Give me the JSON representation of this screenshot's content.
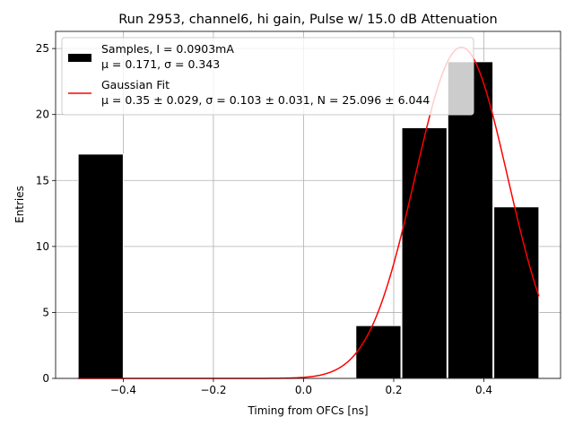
{
  "chart_data": {
    "type": "bar",
    "title": "Run 2953, channel6, hi gain, Pulse w/ 15.0 dB Attenuation",
    "xlabel": "Timing from OFCs [ns]",
    "ylabel": "Entries",
    "xlim": [
      -0.55,
      0.57
    ],
    "ylim": [
      0,
      26.3
    ],
    "xticks": [
      -0.4,
      -0.2,
      0.0,
      0.2,
      0.4
    ],
    "xtick_labels": [
      "−0.4",
      "−0.2",
      "0.0",
      "0.2",
      "0.4"
    ],
    "yticks": [
      0,
      5,
      10,
      15,
      20,
      25
    ],
    "ytick_labels": [
      "0",
      "5",
      "10",
      "15",
      "20",
      "25"
    ],
    "grid": true,
    "legend_position": "top-left",
    "bins": [
      {
        "x0": -0.5,
        "x1": -0.4,
        "value": 17
      },
      {
        "x0": 0.116,
        "x1": 0.216,
        "value": 4
      },
      {
        "x0": 0.218,
        "x1": 0.318,
        "value": 19
      },
      {
        "x0": 0.32,
        "x1": 0.42,
        "value": 24
      },
      {
        "x0": 0.422,
        "x1": 0.522,
        "value": 13
      }
    ],
    "fit": {
      "mu": 0.35,
      "sigma": 0.103,
      "N": 25.096,
      "x_min": -0.5,
      "x_max": 0.522
    },
    "colors": {
      "bars": "#000000",
      "bar_edge": "#ffffff",
      "fit": "#ff0000",
      "grid": "#b0b0b0"
    },
    "legend": [
      {
        "line1": "Samples, I = 0.0903mA",
        "line2": "μ = 0.171, σ = 0.343"
      },
      {
        "line1": "Gaussian Fit",
        "line2": "μ = 0.35 ± 0.029, σ = 0.103 ± 0.031, N = 25.096 ± 6.044"
      }
    ]
  }
}
